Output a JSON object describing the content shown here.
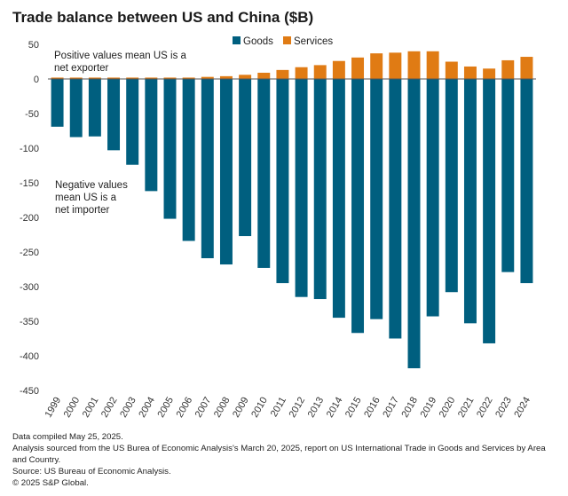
{
  "title": "Trade balance between US and China ($B)",
  "legend": [
    {
      "label": "Goods",
      "color": "#005f7f"
    },
    {
      "label": "Services",
      "color": "#e07b14"
    }
  ],
  "annotations": {
    "positive": [
      "Positive values mean US is a",
      "net exporter"
    ],
    "negative": [
      "Negative values",
      "mean US is a",
      "net importer"
    ]
  },
  "footer": {
    "line1": "Data compiled May 25, 2025.",
    "line2": "Analysis sourced from the US Burea of Economic Analysis's March 20, 2025, report on US International Trade in Goods and Services by Area and Country.",
    "line3": "Source: US Bureau of Economic Analysis.",
    "line4": "© 2025 S&P Global."
  },
  "chart_data": {
    "type": "bar",
    "stacked": true,
    "title": "Trade balance between US and China ($B)",
    "categories": [
      "1999",
      "2000",
      "2001",
      "2002",
      "2003",
      "2004",
      "2005",
      "2006",
      "2007",
      "2008",
      "2009",
      "2010",
      "2011",
      "2012",
      "2013",
      "2014",
      "2015",
      "2016",
      "2017",
      "2018",
      "2019",
      "2020",
      "2021",
      "2022",
      "2023",
      "2024"
    ],
    "series": [
      {
        "name": "Goods",
        "color": "#005f7f",
        "values": [
          -69,
          -84,
          -83,
          -103,
          -124,
          -162,
          -202,
          -234,
          -259,
          -268,
          -227,
          -273,
          -295,
          -315,
          -318,
          -345,
          -367,
          -347,
          -375,
          -418,
          -343,
          -308,
          -353,
          -382,
          -279,
          -295
        ]
      },
      {
        "name": "Services",
        "color": "#e07b14",
        "values": [
          2,
          2,
          2,
          2,
          2,
          2,
          2,
          2,
          3,
          4,
          6,
          9,
          13,
          17,
          20,
          26,
          31,
          37,
          38,
          40,
          40,
          25,
          18,
          15,
          27,
          32
        ]
      }
    ],
    "yticks": [
      50,
      0,
      -50,
      -100,
      -150,
      -200,
      -250,
      -300,
      -350,
      -400,
      -450
    ],
    "ylim": [
      -450,
      50
    ],
    "grid": false,
    "legend_position": "top-right"
  }
}
